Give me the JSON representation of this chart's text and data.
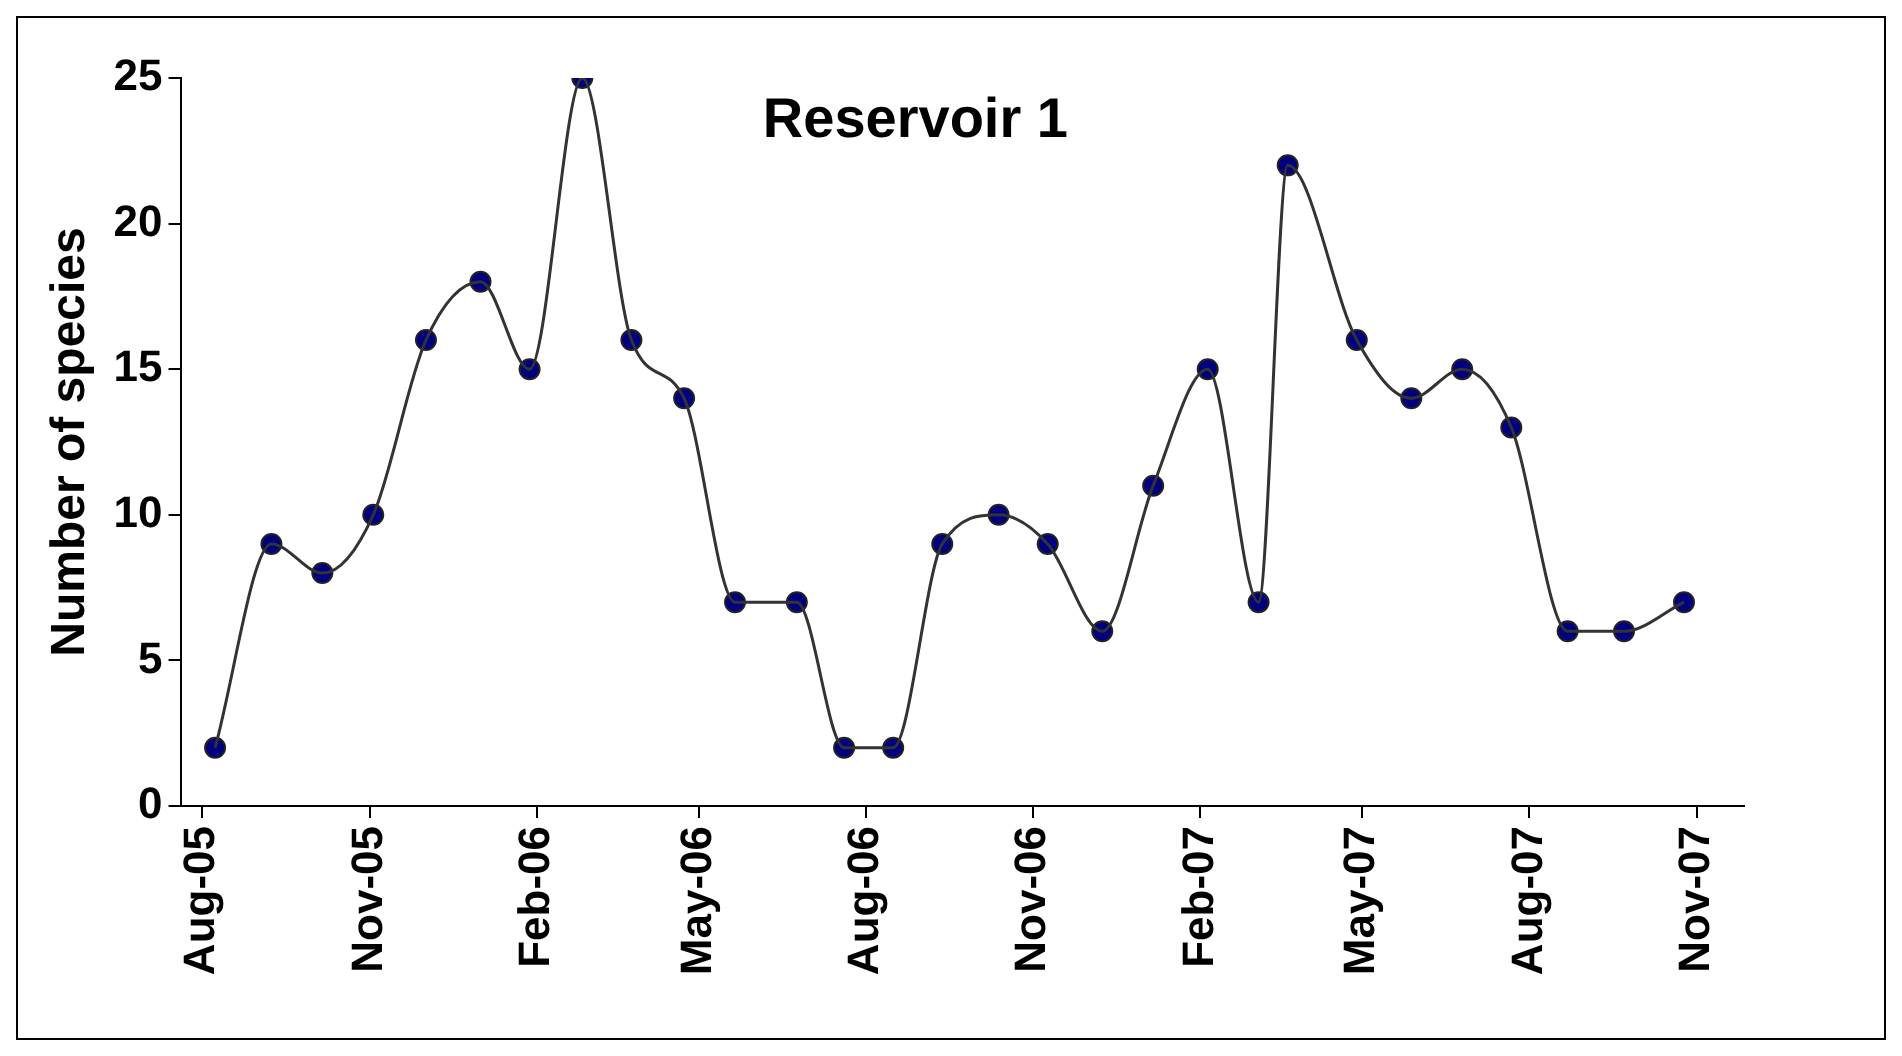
{
  "chart_data": {
    "type": "line",
    "title": "Reservoir 1",
    "ylabel": "Number of species",
    "x": [
      "2005-08-08",
      "2005-09-08",
      "2005-10-06",
      "2005-11-03",
      "2005-12-02",
      "2006-01-01",
      "2006-01-28",
      "2006-02-26",
      "2006-03-25",
      "2006-04-23",
      "2006-05-21",
      "2006-06-24",
      "2006-07-20",
      "2006-08-16",
      "2006-09-12",
      "2006-10-13",
      "2006-11-09",
      "2006-12-09",
      "2007-01-06",
      "2007-02-05",
      "2007-03-05",
      "2007-03-21",
      "2007-04-28",
      "2007-05-28",
      "2007-06-25",
      "2007-07-22",
      "2007-08-22",
      "2007-09-22",
      "2007-10-25"
    ],
    "series": [
      {
        "marker": "none",
        "color": "#333333",
        "values": [
          2,
          9,
          8,
          10,
          16,
          18,
          15,
          25,
          16,
          14,
          7,
          7,
          2,
          2,
          9,
          10,
          9,
          6,
          11,
          15,
          7,
          22,
          16,
          14,
          15,
          13,
          6,
          6,
          7
        ]
      },
      {
        "type": "scatter",
        "color": "#000080",
        "values": [
          2,
          9,
          8,
          10,
          16,
          18,
          15,
          25,
          16,
          14,
          7,
          7,
          2,
          2,
          9,
          10,
          9,
          6,
          11,
          15,
          7,
          22,
          16,
          14,
          15,
          13,
          6,
          6,
          7
        ]
      }
    ],
    "marker": "circle",
    "line_style": "solid",
    "grid": false,
    "legend": false,
    "xlim": [
      "2005-07-20",
      "2007-11-27"
    ],
    "xticks": [
      {
        "value": "2005-08",
        "label": "Aug-05"
      },
      {
        "value": "2005-11",
        "label": "Nov-05"
      },
      {
        "value": "2006-02",
        "label": "Feb-06"
      },
      {
        "value": "2006-05",
        "label": "May-06"
      },
      {
        "value": "2006-08",
        "label": "Aug-06"
      },
      {
        "value": "2006-11",
        "label": "Nov-06"
      },
      {
        "value": "2007-02",
        "label": "Feb-07"
      },
      {
        "value": "2007-05",
        "label": "May-07"
      },
      {
        "value": "2007-08",
        "label": "Aug-07"
      },
      {
        "value": "2007-11",
        "label": "Nov-07"
      }
    ],
    "ylim": [
      0,
      25
    ],
    "yticks": [
      0,
      5,
      10,
      15,
      20,
      25
    ]
  }
}
